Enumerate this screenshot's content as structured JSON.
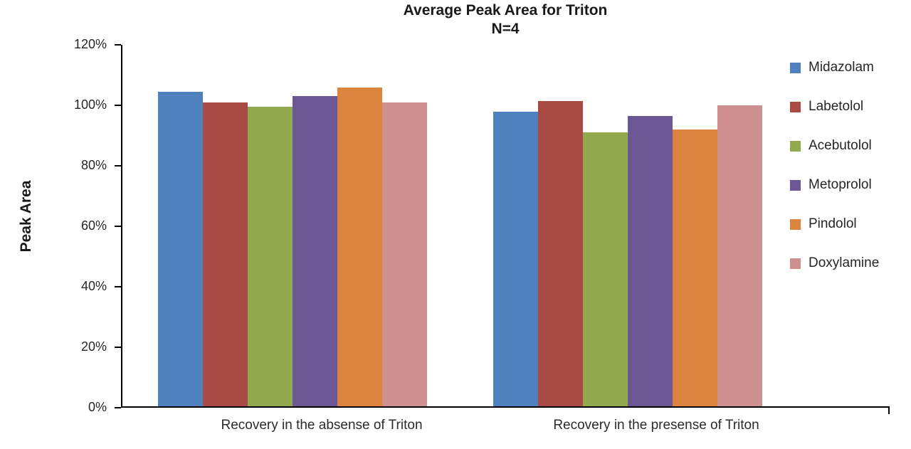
{
  "chart_data": {
    "type": "bar",
    "title": "Average Peak Area for Triton",
    "subtitle": "N=4",
    "ylabel": "Peak Area",
    "ylim": [
      0,
      120
    ],
    "ytick_step": 20,
    "yticks": [
      "0%",
      "20%",
      "40%",
      "60%",
      "80%",
      "100%",
      "120%"
    ],
    "grid": false,
    "legend_position": "right",
    "categories": [
      "Recovery in the absense of Triton",
      "Recovery in the presense of Triton"
    ],
    "series": [
      {
        "name": "Midazolam",
        "color": "#4E81BD",
        "values": [
          104.0,
          97.5
        ]
      },
      {
        "name": "Labetolol",
        "color": "#A94A44",
        "values": [
          100.5,
          101.0
        ]
      },
      {
        "name": "Acebutolol",
        "color": "#92A94E",
        "values": [
          99.0,
          90.5
        ]
      },
      {
        "name": "Metoprolol",
        "color": "#6B5793",
        "values": [
          102.5,
          96.0
        ]
      },
      {
        "name": "Pindolol",
        "color": "#DB843D",
        "values": [
          105.5,
          91.5
        ]
      },
      {
        "name": "Doxylamine",
        "color": "#CE908F",
        "values": [
          100.5,
          99.5
        ]
      }
    ]
  }
}
